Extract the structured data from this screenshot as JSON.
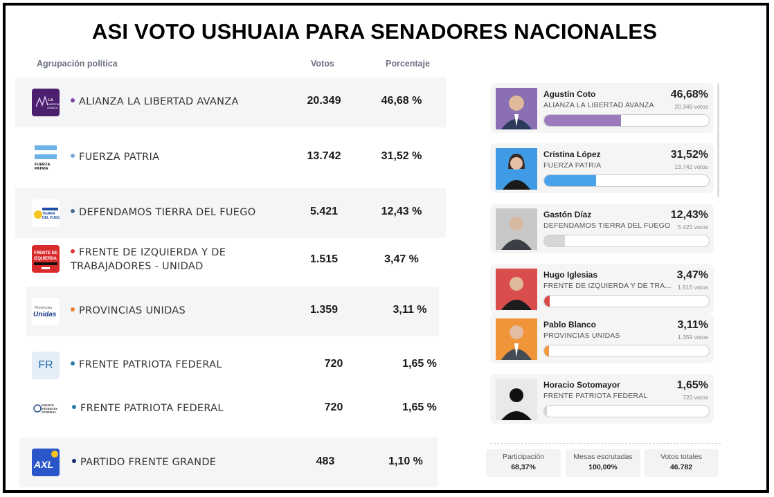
{
  "title": "ASI VOTO USHUAIA PARA SENADORES NACIONALES",
  "headers": {
    "party": "Agrupación política",
    "votes": "Votos",
    "pct": "Porcentaje"
  },
  "parties": [
    {
      "name": "ALIANZA LA LIBERTAD AVANZA",
      "votes": "20.349",
      "pct": "46,68 %",
      "dot_color": "#7b3fa0",
      "logo_text": "LA LIBERTAD AVANZA"
    },
    {
      "name": "FUERZA PATRIA",
      "votes": "13.742",
      "pct": "31,52 %",
      "dot_color": "#7aa7d8",
      "logo_text": "FUERZA PATRIA"
    },
    {
      "name": "DEFENDAMOS TIERRA DEL FUEGO",
      "votes": "5.421",
      "pct": "12,43 %",
      "dot_color": "#4a6b8a",
      "logo_text": "TIERRA DEL FUEGO"
    },
    {
      "name_line1": "FRENTE DE IZQUIERDA Y DE",
      "name_line2": "TRABAJADORES - UNIDAD",
      "votes": "1.515",
      "pct": "3,47 %",
      "dot_color": "#d33",
      "logo_text": "FRENTE DE IZQUIERDA"
    },
    {
      "name": "PROVINCIAS UNIDAS",
      "votes": "1.359",
      "pct": "3,11 %",
      "dot_color": "#f07a2a",
      "logo_text_top": "Provincias",
      "logo_text": "Unidas"
    },
    {
      "name": "FRENTE PATRIOTA FEDERAL",
      "votes": "720",
      "pct": "1,65 %",
      "dot_color": "#2a7aa8",
      "logo_text": "FR"
    },
    {
      "name": "FRENTE PATRIOTA FEDERAL",
      "votes": "720",
      "pct": "1,65 %",
      "dot_color": "#2a7aa8",
      "logo_text": "FRENTE PATRIOTA FEDERAL"
    },
    {
      "name": "PARTIDO FRENTE GRANDE",
      "votes": "483",
      "pct": "1,10 %",
      "dot_color": "#1a2a6b",
      "logo_text": "AXL"
    }
  ],
  "candidates": [
    {
      "name": "Agustín Coto",
      "party": "ALIANZA LA LIBERTAD AVANZA",
      "pct": "46,68%",
      "votes": "20.349 votos",
      "share": 46.68,
      "color": "#9b7bbd",
      "photo_bg": "#8a6fb3"
    },
    {
      "name": "Cristina López",
      "party": "FUERZA PATRIA",
      "pct": "31,52%",
      "votes": "13.742 votos",
      "share": 31.52,
      "color": "#4aa3ea",
      "photo_bg": "#3f9be6"
    },
    {
      "name": "Gastón Díaz",
      "party": "DEFENDAMOS TIERRA DEL FUEGO",
      "pct": "12,43%",
      "votes": "5.421 votos",
      "share": 12.43,
      "color": "#d6d6d6",
      "photo_bg": "#c8c8c8"
    },
    {
      "name": "Hugo Iglesias",
      "party": "FRENTE DE IZQUIERDA Y DE TRA...",
      "pct": "3,47%",
      "votes": "1.515 votos",
      "share": 3.47,
      "color": "#d84a4a",
      "photo_bg": "#d94d4d"
    },
    {
      "name": "Pablo Blanco",
      "party": "PROVINCIAS UNIDAS",
      "pct": "3,11%",
      "votes": "1.359 votos",
      "share": 3.11,
      "color": "#f29b3e",
      "photo_bg": "#f0953a"
    },
    {
      "name": "Horacio Sotomayor",
      "party": "FRENTE PATRIOTA FEDERAL",
      "pct": "1,65%",
      "votes": "720 votos",
      "share": 1.65,
      "color": "#d6d6d6",
      "photo_bg": "#e9e9e9"
    }
  ],
  "stats": [
    {
      "label": "Participación",
      "value": "68,37%"
    },
    {
      "label": "Mesas escrutadas",
      "value": "100,00%"
    },
    {
      "label": "Votos totales",
      "value": "46.782"
    }
  ]
}
